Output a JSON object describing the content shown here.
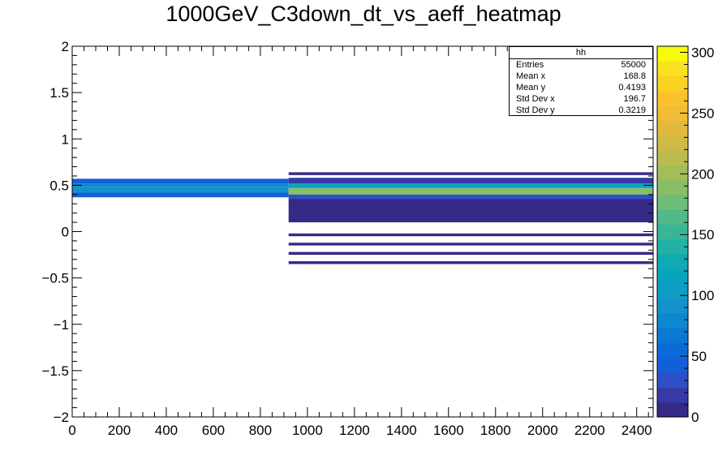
{
  "chart_data": {
    "type": "heatmap",
    "title": "1000GeV_C3down_dt_vs_aeff_heatmap",
    "xlim": [
      0,
      2470
    ],
    "ylim": [
      -2,
      2
    ],
    "x_ticks": [
      "0",
      "200",
      "400",
      "600",
      "800",
      "1000",
      "1200",
      "1400",
      "1600",
      "1800",
      "2000",
      "2200",
      "2400"
    ],
    "y_ticks": [
      "2",
      "1.5",
      "1",
      "0.5",
      "0",
      "−0.5",
      "−1",
      "−1.5",
      "−2"
    ],
    "z_ticks": [
      "300",
      "250",
      "200",
      "150",
      "100",
      "50",
      "0"
    ],
    "zlim": [
      0,
      305
    ],
    "palette": [
      "#352a87",
      "#363aa6",
      "#2e4fc6",
      "#145ed8",
      "#0b6ad9",
      "#0b79d4",
      "#0e86d0",
      "#1492cb",
      "#0f9cc6",
      "#08a3be",
      "#10aab2",
      "#22b1a5",
      "#38b698",
      "#51ba88",
      "#6ebd77",
      "#8abe66",
      "#a3bd58",
      "#bbbc4e",
      "#d0ba45",
      "#e2b93e",
      "#f1bc37",
      "#fbc22d",
      "#fbd224",
      "#f8e11e",
      "#f9fb0e"
    ],
    "bands": [
      {
        "x": [
          0,
          920
        ],
        "y": [
          0.48,
          0.52
        ],
        "z": 80
      },
      {
        "x": [
          0,
          920
        ],
        "y": [
          0.42,
          0.48
        ],
        "z": 95
      },
      {
        "x": [
          0,
          920
        ],
        "y": [
          0.52,
          0.57
        ],
        "z": 45
      },
      {
        "x": [
          0,
          920
        ],
        "y": [
          0.37,
          0.42
        ],
        "z": 40
      },
      {
        "x": [
          920,
          2470
        ],
        "y": [
          0.4,
          0.47
        ],
        "z": 190
      },
      {
        "x": [
          920,
          2470
        ],
        "y": [
          0.47,
          0.52
        ],
        "z": 110
      },
      {
        "x": [
          920,
          2470
        ],
        "y": [
          0.52,
          0.58
        ],
        "z": 15
      },
      {
        "x": [
          920,
          2470
        ],
        "y": [
          0.35,
          0.4
        ],
        "z": 25
      },
      {
        "x": [
          920,
          2470
        ],
        "y": [
          0.1,
          0.35
        ],
        "z": 3
      },
      {
        "x": [
          920,
          2470
        ],
        "y": [
          0.61,
          0.64
        ],
        "z": 2
      },
      {
        "x": [
          920,
          2470
        ],
        "y": [
          -0.02,
          -0.05
        ],
        "z": 1
      },
      {
        "x": [
          920,
          2470
        ],
        "y": [
          -0.12,
          -0.15
        ],
        "z": 1
      },
      {
        "x": [
          920,
          2470
        ],
        "y": [
          -0.22,
          -0.25
        ],
        "z": 1
      },
      {
        "x": [
          920,
          2470
        ],
        "y": [
          -0.32,
          -0.35
        ],
        "z": 1
      }
    ],
    "stats": {
      "name": "hh",
      "entries": {
        "label": "Entries",
        "value": "55000"
      },
      "mean_x": {
        "label": "Mean x",
        "value": "168.8"
      },
      "mean_y": {
        "label": "Mean y",
        "value": "0.4193"
      },
      "std_x": {
        "label": "Std Dev x",
        "value": "196.7"
      },
      "std_y": {
        "label": "Std Dev y",
        "value": "0.3219"
      }
    }
  }
}
